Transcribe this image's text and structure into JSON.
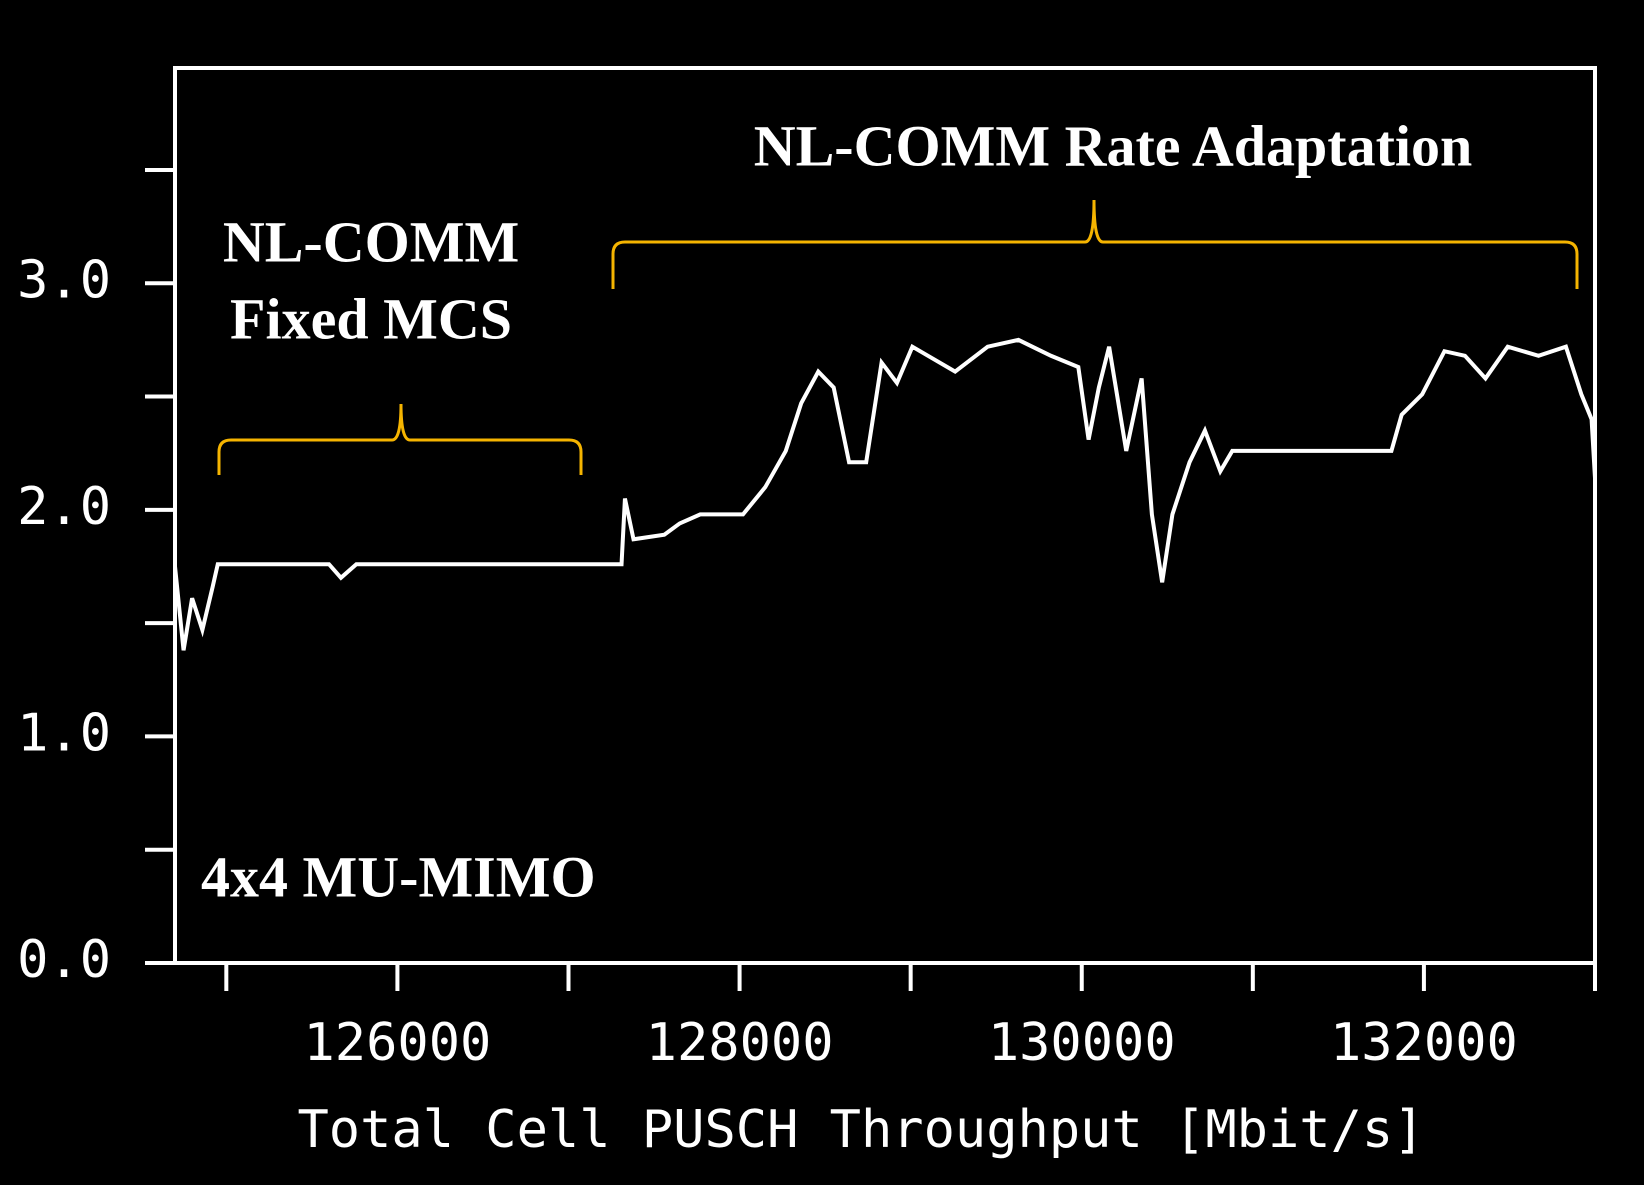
{
  "chart_data": {
    "type": "line",
    "xlabel": "Total Cell PUSCH Throughput [Mbit/s]",
    "annotations": [
      "NL-COMM Rate Adaptation",
      "NL-COMM",
      "Fixed MCS",
      "4x4 MU-MIMO"
    ],
    "xlim": [
      124700,
      133000
    ],
    "xticks": [
      126000,
      128000,
      130000,
      132000
    ],
    "xticks_minor": [
      125000,
      127000,
      129000,
      131000,
      133000
    ],
    "ylim": [
      0,
      3.95
    ],
    "yticks": [
      {
        "value": 0,
        "label": "0.0"
      },
      {
        "value": 1,
        "label": "1.0"
      },
      {
        "value": 2,
        "label": "2.0"
      },
      {
        "value": 3,
        "label": "3.0"
      }
    ],
    "yticks_minor": [
      0.5,
      1.5,
      2.5,
      3.5
    ],
    "color": "#ffffff",
    "x": [
      124700,
      124750,
      124800,
      124860,
      124920,
      124950,
      125600,
      125670,
      125760,
      127310,
      127330,
      127380,
      127560,
      127650,
      127770,
      128020,
      128150,
      128270,
      128360,
      128460,
      128550,
      128640,
      128740,
      128830,
      128920,
      129010,
      129260,
      129450,
      129630,
      129820,
      129980,
      130040,
      130100,
      130160,
      130260,
      130350,
      130410,
      130470,
      130530,
      130630,
      130720,
      130810,
      130880,
      131120,
      131430,
      131810,
      131870,
      131990,
      132120,
      132240,
      132360,
      132490,
      132670,
      132830,
      132920,
      132980,
      133000
    ],
    "values": [
      1.75,
      1.38,
      1.61,
      1.47,
      1.66,
      1.76,
      1.76,
      1.7,
      1.76,
      1.76,
      2.05,
      1.87,
      1.89,
      1.94,
      1.98,
      1.98,
      2.1,
      2.26,
      2.47,
      2.61,
      2.54,
      2.21,
      2.21,
      2.65,
      2.56,
      2.72,
      2.61,
      2.72,
      2.75,
      2.68,
      2.63,
      2.31,
      2.54,
      2.72,
      2.26,
      2.58,
      1.98,
      1.68,
      1.98,
      2.21,
      2.35,
      2.17,
      2.26,
      2.26,
      2.26,
      2.26,
      2.42,
      2.51,
      2.7,
      2.68,
      2.58,
      2.72,
      2.68,
      2.72,
      2.51,
      2.4,
      2.14
    ]
  }
}
